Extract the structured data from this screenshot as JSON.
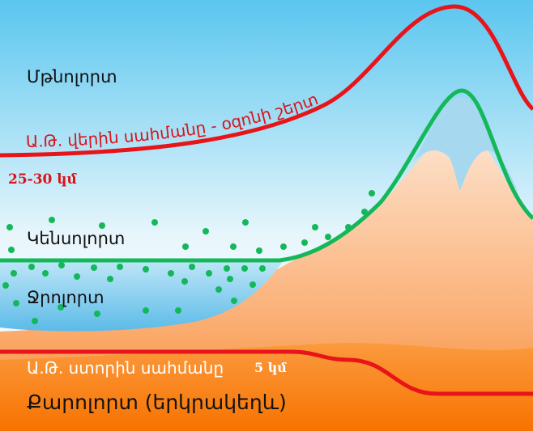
{
  "labels": {
    "atmosphere": "Մթնոլորտ",
    "upper_limit": "Ա.Թ. վերին սահմանը - օզոնի շերտ",
    "upper_height": "25-30 կմ",
    "biosphere": "Կենսոլորտ",
    "hydrosphere": "Ջրոլորտ",
    "lower_limit": "Ա.Թ. ստորին սահմանը",
    "lower_depth": "5 կմ",
    "lithosphere": "Քարոլորտ (երկրակեղև)"
  }
}
